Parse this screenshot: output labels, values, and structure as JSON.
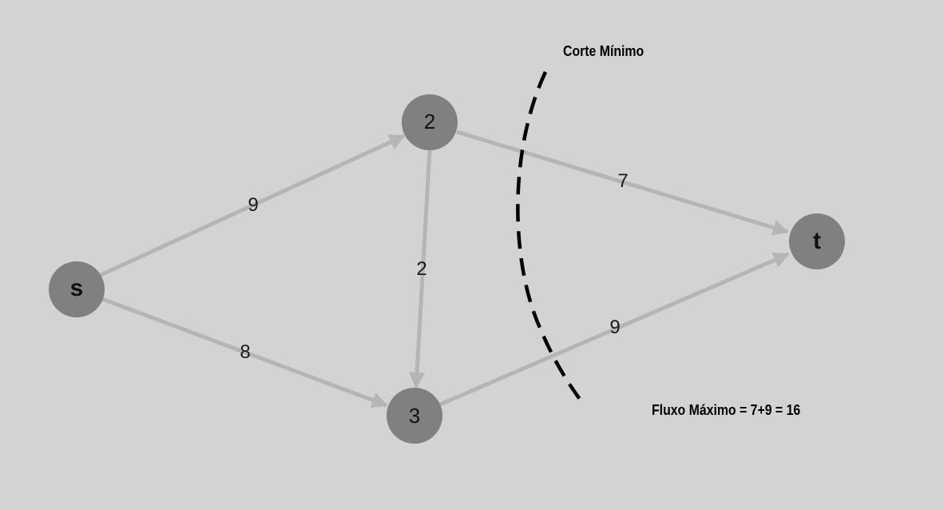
{
  "diagram": {
    "nodes": [
      {
        "id": "s",
        "label": "s"
      },
      {
        "id": "2",
        "label": "2"
      },
      {
        "id": "3",
        "label": "3"
      },
      {
        "id": "t",
        "label": "t"
      }
    ],
    "edges": [
      {
        "from": "s",
        "to": "2",
        "capacity": "9"
      },
      {
        "from": "s",
        "to": "3",
        "capacity": "8"
      },
      {
        "from": "2",
        "to": "3",
        "capacity": "2"
      },
      {
        "from": "2",
        "to": "t",
        "capacity": "7"
      },
      {
        "from": "3",
        "to": "t",
        "capacity": "9"
      }
    ],
    "cut_label": "Corte Mínimo",
    "max_flow_label": "Fluxo Máximo = 7+9 = 16"
  },
  "colors": {
    "background": "#d3d3d3",
    "node": "#808080",
    "edge": "#b5b5b5",
    "cut": "#000000"
  }
}
